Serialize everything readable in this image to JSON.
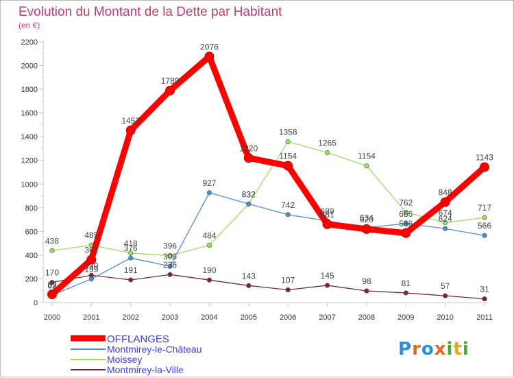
{
  "chart_data": {
    "type": "line",
    "title": "Evolution du Montant de la Dette par Habitant",
    "subtitle": "(en €)",
    "xlabel": "",
    "ylabel": "",
    "categories": [
      "2000",
      "2001",
      "2002",
      "2003",
      "2004",
      "2005",
      "2006",
      "2007",
      "2008",
      "2009",
      "2010",
      "2011"
    ],
    "y_ticks": [
      "0",
      "200",
      "400",
      "600",
      "800",
      "1000",
      "1200",
      "1400",
      "1600",
      "1800",
      "2000",
      "2200"
    ],
    "ylim": [
      0,
      2200
    ],
    "grid": false,
    "legend_position": "bottom-left",
    "series": [
      {
        "name": "OFFLANGES",
        "color": "#ff0000",
        "values": [
          69,
          362,
          1453,
          1789,
          2076,
          1220,
          1154,
          661,
          620,
          586,
          848,
          1143
        ]
      },
      {
        "name": "Montmirey-le-Château",
        "color": "#4a90cc",
        "values": [
          62,
          199,
          376,
          306,
          927,
          832,
          742,
          689,
          634,
          666,
          624,
          566
        ]
      },
      {
        "name": "Moissey",
        "color": "#99e060",
        "values": [
          438,
          485,
          418,
          396,
          484,
          832,
          1358,
          1265,
          1154,
          762,
          674,
          717
        ]
      },
      {
        "name": "Montmirey-la-Ville",
        "color": "#7a2a2a",
        "values": [
          170,
          230,
          191,
          236,
          190,
          143,
          107,
          145,
          98,
          81,
          57,
          31
        ]
      }
    ]
  },
  "logo": {
    "text": "Proxiti"
  },
  "colors": {
    "title": "#c03c72",
    "axis": "#c8c8c8",
    "tick_text": "#333333",
    "legend_text": "#3a3aea"
  }
}
